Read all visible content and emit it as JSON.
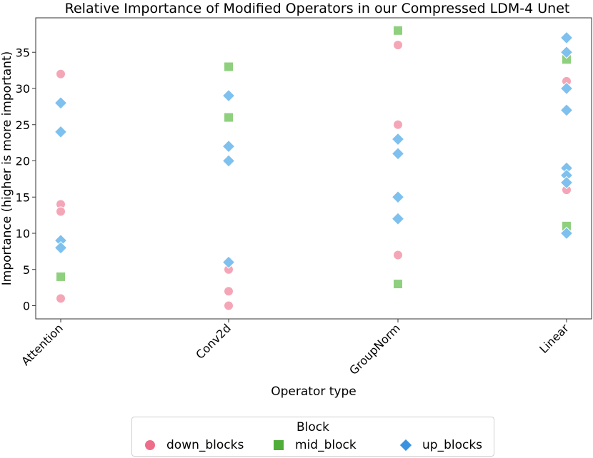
{
  "chart_data": {
    "type": "scatter",
    "title": "Relative Importance of Modified Operators in our Compressed LDM-4 Unet",
    "xlabel": "Operator type",
    "ylabel": "Importance (higher is more important)",
    "categories": [
      "Attention",
      "Conv2d",
      "GroupNorm",
      "Linear"
    ],
    "ylim": [
      -2,
      39
    ],
    "yticks": [
      0,
      5,
      10,
      15,
      20,
      25,
      30,
      35
    ],
    "grid": false,
    "legend": {
      "title": "Block",
      "placement": "bottom-center"
    },
    "series": [
      {
        "name": "down_blocks",
        "marker": "circle",
        "color": "#f4a6b7",
        "legend_color": "#ee6e8a",
        "points": [
          {
            "x": "Attention",
            "y": 32
          },
          {
            "x": "Attention",
            "y": 14
          },
          {
            "x": "Attention",
            "y": 13
          },
          {
            "x": "Attention",
            "y": 1
          },
          {
            "x": "Conv2d",
            "y": 5
          },
          {
            "x": "Conv2d",
            "y": 2
          },
          {
            "x": "Conv2d",
            "y": 0
          },
          {
            "x": "GroupNorm",
            "y": 36
          },
          {
            "x": "GroupNorm",
            "y": 25
          },
          {
            "x": "GroupNorm",
            "y": 7
          },
          {
            "x": "Linear",
            "y": 31
          },
          {
            "x": "Linear",
            "y": 16
          }
        ]
      },
      {
        "name": "mid_block",
        "marker": "square",
        "color": "#8fd07e",
        "legend_color": "#4fae3a",
        "points": [
          {
            "x": "Attention",
            "y": 4
          },
          {
            "x": "Conv2d",
            "y": 33
          },
          {
            "x": "Conv2d",
            "y": 26
          },
          {
            "x": "GroupNorm",
            "y": 38
          },
          {
            "x": "GroupNorm",
            "y": 3
          },
          {
            "x": "Linear",
            "y": 34
          },
          {
            "x": "Linear",
            "y": 11
          }
        ]
      },
      {
        "name": "up_blocks",
        "marker": "diamond",
        "color": "#7ec0ee",
        "legend_color": "#3a93e0",
        "points": [
          {
            "x": "Attention",
            "y": 28
          },
          {
            "x": "Attention",
            "y": 24
          },
          {
            "x": "Attention",
            "y": 9
          },
          {
            "x": "Attention",
            "y": 8
          },
          {
            "x": "Conv2d",
            "y": 29
          },
          {
            "x": "Conv2d",
            "y": 22
          },
          {
            "x": "Conv2d",
            "y": 20
          },
          {
            "x": "Conv2d",
            "y": 6
          },
          {
            "x": "GroupNorm",
            "y": 23
          },
          {
            "x": "GroupNorm",
            "y": 21
          },
          {
            "x": "GroupNorm",
            "y": 15
          },
          {
            "x": "GroupNorm",
            "y": 12
          },
          {
            "x": "Linear",
            "y": 37
          },
          {
            "x": "Linear",
            "y": 35
          },
          {
            "x": "Linear",
            "y": 30
          },
          {
            "x": "Linear",
            "y": 27
          },
          {
            "x": "Linear",
            "y": 19
          },
          {
            "x": "Linear",
            "y": 18
          },
          {
            "x": "Linear",
            "y": 17
          },
          {
            "x": "Linear",
            "y": 10
          }
        ]
      }
    ]
  }
}
